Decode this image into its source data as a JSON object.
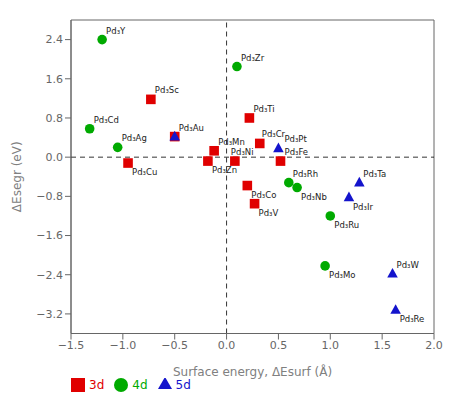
{
  "chart_data": {
    "type": "scatter",
    "x_label": "Surface energy, ΔEsurf (Å)",
    "y_label": "ΔEsegr (eV)",
    "series": [
      {
        "name": "3d",
        "color": "#e00000",
        "marker": "square",
        "x": [
          -0.73,
          0.22,
          0.27,
          0.32,
          -0.12,
          0.52,
          0.2,
          0.08,
          -0.95,
          -0.18,
          -0.5
        ],
        "values": [
          1.18,
          0.8,
          -0.95,
          0.28,
          0.13,
          -0.08,
          -0.58,
          -0.08,
          -0.12,
          -0.08,
          0.42
        ],
        "labels": [
          "Pd₃Sc",
          "Pd₃Ti",
          "Pd₃V",
          "Pd₃Cr",
          "Pd₃Mn",
          "Pd₃Fe",
          "Pd₃Co",
          "Pd₃Ni",
          "Pd₃Cu",
          "Pd₃Zn",
          "Pd₃Au"
        ]
      },
      {
        "name": "4d",
        "color": "#00aa00",
        "marker": "circle",
        "x": [
          -1.2,
          0.1,
          0.68,
          0.95,
          1.0,
          0.6,
          -1.05,
          -1.32
        ],
        "values": [
          2.4,
          1.85,
          -0.62,
          -2.22,
          -1.2,
          -0.52,
          0.2,
          0.58
        ],
        "labels": [
          "Pd₃Y",
          "Pd₃Zr",
          "Pd₃Nb",
          "Pd₃Mo",
          "Pd₃Ru",
          "Pd₃Rh",
          "Pd₃Ag",
          "Pd₃Cd"
        ]
      },
      {
        "name": "5d",
        "color": "#1414cc",
        "marker": "triangle",
        "x": [
          1.28,
          1.6,
          1.63,
          1.18,
          0.5,
          -0.5
        ],
        "values": [
          -0.52,
          -2.38,
          -3.12,
          -0.82,
          0.18,
          0.42
        ],
        "labels": [
          "Pd₃Ta",
          "Pd₃W",
          "Pd₃Re",
          "Pd₃Ir",
          "Pd₃Pt",
          null
        ]
      }
    ],
    "hlines": [
      0
    ],
    "vlines": [
      0
    ],
    "xlim": [
      -1.5,
      2.0
    ],
    "ylim": [
      -3.6,
      2.8
    ],
    "xticks": [
      {
        "value": -1.5,
        "label": "−1.5"
      },
      {
        "value": -1.0,
        "label": "−1.0"
      },
      {
        "value": -0.5,
        "label": "−0.5"
      },
      {
        "value": 0,
        "label": "0.0"
      },
      0.5,
      {
        "value": 1.0,
        "label": "1.0"
      },
      1.5,
      {
        "value": 2.0,
        "label": "2.0"
      }
    ],
    "yticks": [
      {
        "value": -3.2,
        "label": "−3.2"
      },
      {
        "value": -2.4,
        "label": "−2.4"
      },
      {
        "value": -1.6,
        "label": "−1.6"
      },
      {
        "value": -0.8,
        "label": "−0.8"
      },
      {
        "value": 0,
        "label": "0.0"
      },
      0.8,
      1.6,
      2.4
    ],
    "grid": false,
    "legend": "lower left"
  }
}
